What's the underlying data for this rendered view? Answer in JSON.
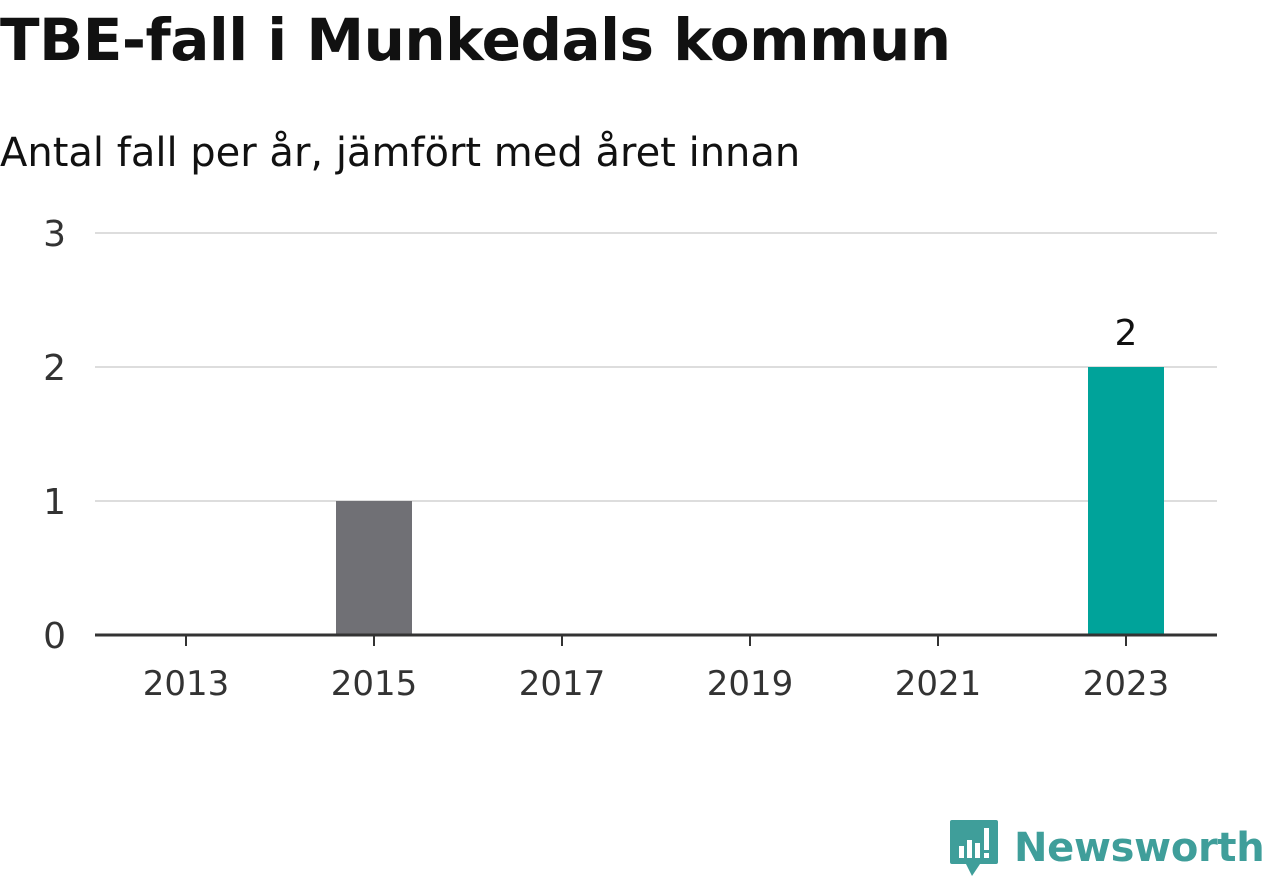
{
  "title": "TBE-fall i Munkedals kommun",
  "subtitle": "Antal fall per år, jämfört med året innan",
  "brand": {
    "name": "Newsworthy",
    "color": "#3f9e9a",
    "icon": "newsworthy-logo-icon"
  },
  "colors": {
    "current": "#00a39a",
    "previous": "#707075",
    "grid": "#dddddd",
    "axis": "#333333"
  },
  "chart_data": {
    "type": "bar",
    "categories": [
      "2013",
      "2014",
      "2015",
      "2016",
      "2017",
      "2018",
      "2019",
      "2020",
      "2021",
      "2022",
      "2023"
    ],
    "x_tick_labels": [
      "2013",
      "2015",
      "2017",
      "2019",
      "2021",
      "2023"
    ],
    "values": [
      0,
      0,
      1,
      0,
      0,
      0,
      0,
      0,
      0,
      0,
      2
    ],
    "highlight_category": "2023",
    "data_labels": [
      {
        "category": "2023",
        "label": "2"
      }
    ],
    "y_ticks": [
      0,
      1,
      2,
      3
    ],
    "ylim": [
      0,
      3
    ],
    "title": "TBE-fall i Munkedals kommun",
    "xlabel": "",
    "ylabel": "",
    "grid": true,
    "legend": "none"
  }
}
